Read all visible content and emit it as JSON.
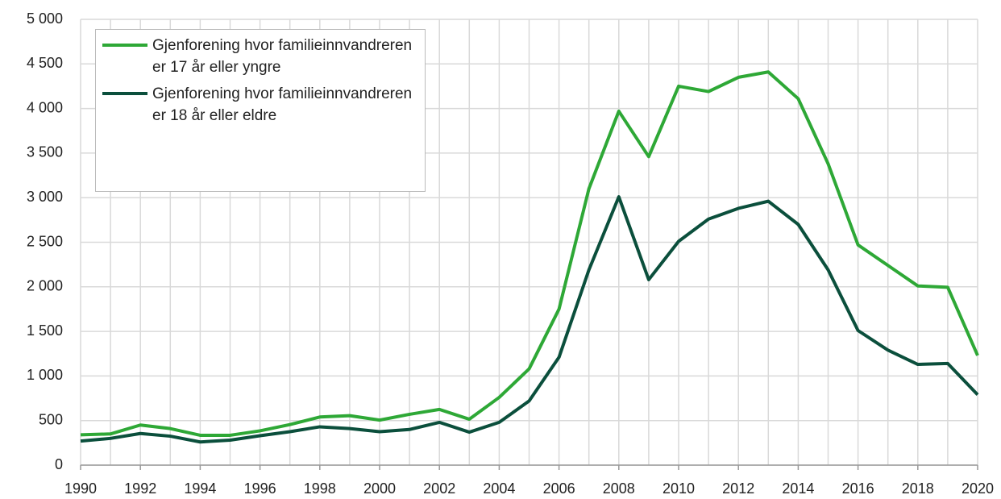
{
  "chart_data": {
    "type": "line",
    "x": [
      1990,
      1991,
      1992,
      1993,
      1994,
      1995,
      1996,
      1997,
      1998,
      1999,
      2000,
      2001,
      2002,
      2003,
      2004,
      2005,
      2006,
      2007,
      2008,
      2009,
      2010,
      2011,
      2012,
      2013,
      2014,
      2015,
      2016,
      2017,
      2018,
      2019,
      2020
    ],
    "series": [
      {
        "name": "Gjenforening hvor familieinnvandreren er 17 år eller yngre",
        "color": "#2ea836",
        "values": [
          340,
          350,
          450,
          410,
          335,
          335,
          385,
          455,
          540,
          555,
          505,
          570,
          625,
          515,
          760,
          1080,
          1750,
          3100,
          3970,
          3460,
          4250,
          4190,
          4350,
          4410,
          4110,
          3380,
          2470,
          2240,
          2010,
          1995,
          1230
        ]
      },
      {
        "name": "Gjenforening hvor familieinnvandreren er 18 år eller eldre",
        "color": "#0b4f3c",
        "values": [
          270,
          300,
          355,
          325,
          260,
          280,
          330,
          375,
          430,
          410,
          375,
          400,
          480,
          370,
          480,
          720,
          1210,
          2190,
          3010,
          2080,
          2510,
          2760,
          2880,
          2960,
          2700,
          2190,
          1510,
          1290,
          1130,
          1140,
          790
        ]
      }
    ],
    "xlim": [
      1990,
      2020
    ],
    "xticks": [
      1990,
      1992,
      1994,
      1996,
      1998,
      2000,
      2002,
      2004,
      2006,
      2008,
      2010,
      2012,
      2014,
      2016,
      2018,
      2020
    ],
    "ylim": [
      0,
      5000
    ],
    "yticks": [
      0,
      500,
      {
        "value": 1000,
        "label": "1 000"
      },
      {
        "value": 1500,
        "label": "1 500"
      },
      {
        "value": 2000,
        "label": "2 000"
      },
      {
        "value": 2500,
        "label": "2 500"
      },
      {
        "value": 3000,
        "label": "3 000"
      },
      {
        "value": 3500,
        "label": "3 500"
      },
      {
        "value": 4000,
        "label": "4 000"
      },
      {
        "value": 4500,
        "label": "4 500"
      },
      {
        "value": 5000,
        "label": "5 000"
      }
    ],
    "grid": true,
    "legend": "upper-left"
  }
}
